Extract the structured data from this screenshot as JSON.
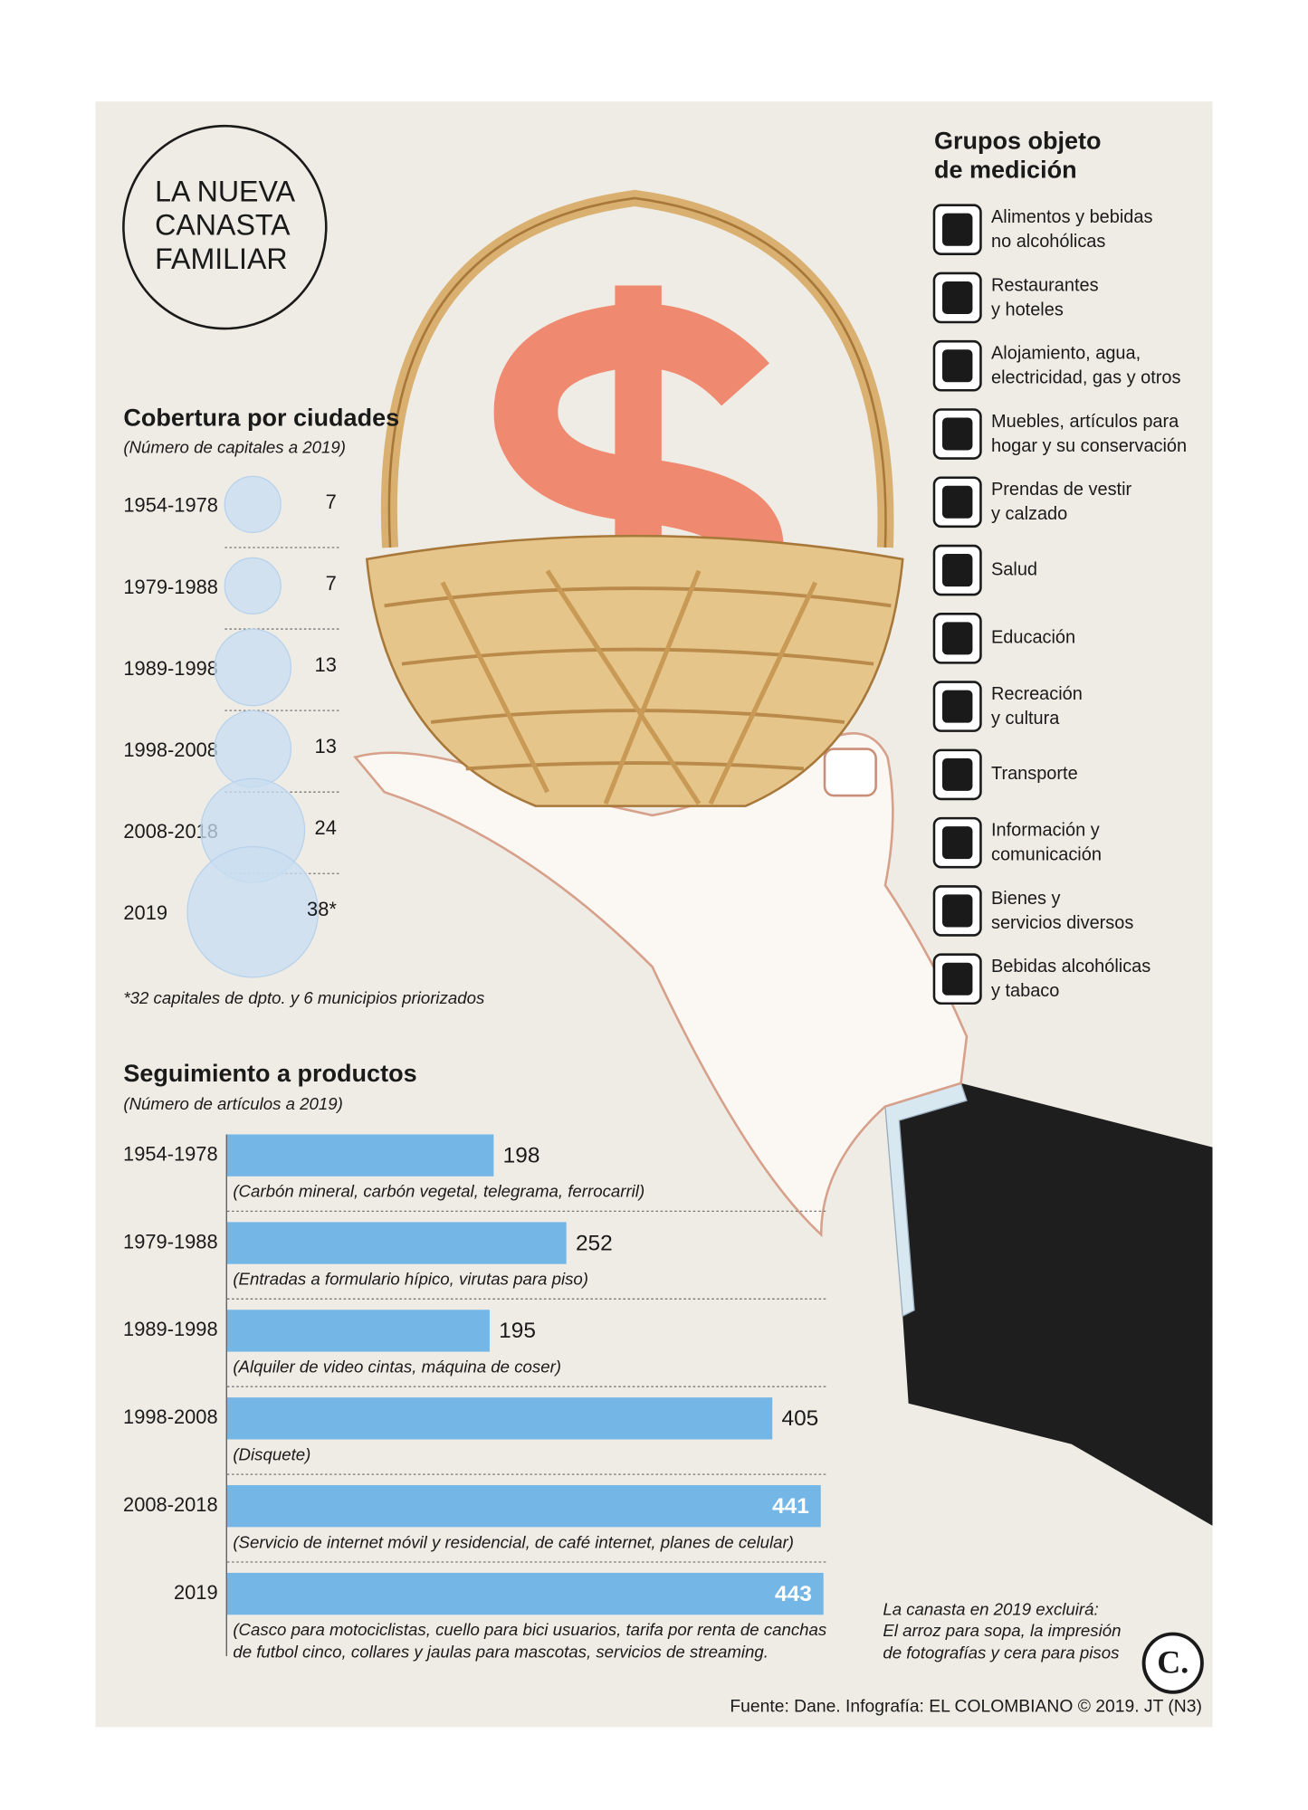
{
  "header": {
    "title": [
      "LA NUEVA",
      "CANASTA",
      "FAMILIAR"
    ]
  },
  "chart_data": [
    {
      "type": "bubble",
      "title": "Cobertura por ciudades",
      "subtitle": "(Número de capitales a 2019)",
      "categories": [
        "1954-1978",
        "1979-1988",
        "1989-1998",
        "1998-2008",
        "2008-2018",
        "2019"
      ],
      "values": [
        7,
        7,
        13,
        13,
        24,
        38
      ],
      "value_labels": [
        "7",
        "7",
        "13",
        "13",
        "24",
        "38*"
      ],
      "color": "#c8ddf1",
      "footnote": "*32 capitales de dpto. y 6 municipios priorizados"
    },
    {
      "type": "bar",
      "orientation": "horizontal",
      "title": "Seguimiento a productos",
      "subtitle": "(Número de artículos a 2019)",
      "categories": [
        "1954-1978",
        "1979-1988",
        "1989-1998",
        "1998-2008",
        "2008-2018",
        "2019"
      ],
      "values": [
        198,
        252,
        195,
        405,
        441,
        443
      ],
      "notes": [
        [
          "(Carbón mineral, carbón vegetal, telegrama, ferrocarril)"
        ],
        [
          "(Entradas a formulario hípico, virutas para piso)"
        ],
        [
          "(Alquiler de video cintas, máquina de coser)"
        ],
        [
          "(Disquete)"
        ],
        [
          "(Servicio de internet móvil y residencial, de café internet, planes de celular)"
        ],
        [
          "(Casco para motociclistas, cuello para bici usuarios, tarifa por renta de canchas",
          "de futbol cinco, collares y jaulas para mascotas, servicios de streaming."
        ]
      ],
      "color": "#74b6e6",
      "xlim": [
        0,
        443
      ]
    }
  ],
  "groups": {
    "title": [
      "Grupos objeto",
      "de medición"
    ],
    "items": [
      [
        "Alimentos y bebidas",
        "no alcohólicas"
      ],
      [
        "Restaurantes",
        "y hoteles"
      ],
      [
        "Alojamiento, agua,",
        "electricidad, gas y otros"
      ],
      [
        "Muebles, artículos para",
        "hogar y su conservación"
      ],
      [
        "Prendas de vestir",
        "y calzado"
      ],
      [
        "Salud"
      ],
      [
        "Educación"
      ],
      [
        "Recreación",
        "y cultura"
      ],
      [
        "Transporte"
      ],
      [
        "Información y",
        "comunicación"
      ],
      [
        "Bienes y",
        "servicios diversos"
      ],
      [
        "Bebidas alcohólicas",
        "y tabaco"
      ]
    ]
  },
  "exclusion_note": [
    "La canasta en 2019 excluirá:",
    "El arroz para sopa, la impresión",
    "de fotografías y cera para pisos"
  ],
  "logo": "C.",
  "source": "Fuente: Dane. Infografía: EL COLOMBIANO © 2019. JT (N3)"
}
